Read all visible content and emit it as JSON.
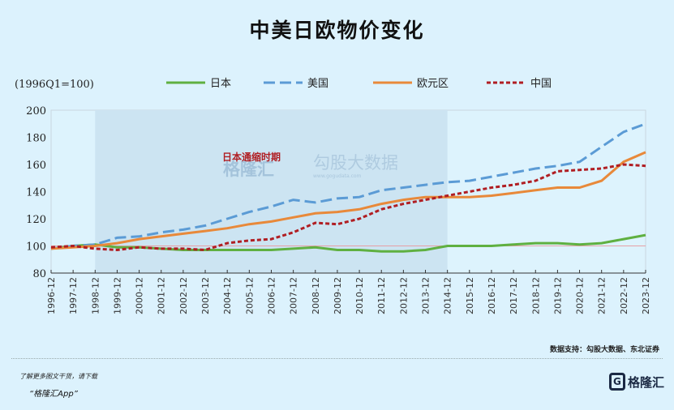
{
  "chart_data": {
    "type": "line",
    "title": "中美日欧物价变化",
    "ylabel": "(1996Q1=100)",
    "ylim": [
      80,
      200
    ],
    "yticks": [
      80,
      100,
      120,
      140,
      160,
      180,
      200
    ],
    "x": [
      "1996-12",
      "1997-12",
      "1998-12",
      "1999-12",
      "2000-12",
      "2001-12",
      "2002-12",
      "2003-12",
      "2004-12",
      "2005-12",
      "2006-12",
      "2007-12",
      "2008-12",
      "2009-12",
      "2010-12",
      "2011-12",
      "2012-12",
      "2013-12",
      "2014-12",
      "2015-12",
      "2016-12",
      "2017-12",
      "2018-12",
      "2019-12",
      "2020-12",
      "2021-12",
      "2022-12",
      "2023-12"
    ],
    "legend_position": "top",
    "reference_line": 100,
    "shaded_region": {
      "from": "1998-12",
      "to": "2014-12",
      "label": "日本通缩时期"
    },
    "series": [
      {
        "name": "日本",
        "color": "#5fb041",
        "style": "solid",
        "values": [
          98,
          100,
          101,
          99,
          99,
          98,
          97,
          97,
          97,
          97,
          97,
          98,
          99,
          97,
          97,
          96,
          96,
          97,
          100,
          100,
          100,
          101,
          102,
          102,
          101,
          102,
          105,
          108
        ]
      },
      {
        "name": "美国",
        "color": "#5b9bd5",
        "style": "dashed",
        "values": [
          98,
          100,
          101,
          106,
          107,
          110,
          112,
          115,
          120,
          125,
          129,
          134,
          132,
          135,
          136,
          141,
          143,
          145,
          147,
          148,
          151,
          154,
          157,
          159,
          162,
          173,
          184,
          190
        ]
      },
      {
        "name": "欧元区",
        "color": "#e8893a",
        "style": "solid",
        "values": [
          98,
          99,
          100,
          102,
          105,
          107,
          109,
          111,
          113,
          116,
          118,
          121,
          124,
          125,
          127,
          131,
          134,
          136,
          136,
          136,
          137,
          139,
          141,
          143,
          143,
          148,
          162,
          169
        ]
      },
      {
        "name": "中国",
        "color": "#b01e23",
        "style": "dotted",
        "values": [
          99,
          100,
          98,
          97,
          99,
          98,
          98,
          97,
          102,
          104,
          105,
          110,
          117,
          116,
          120,
          127,
          131,
          134,
          137,
          140,
          143,
          145,
          148,
          155,
          156,
          157,
          160,
          159
        ]
      }
    ]
  },
  "watermark": {
    "brand": "格隆汇",
    "brand_url": "www.gelonghui.com",
    "data_brand": "勾股大数据",
    "data_url": "www.gogudata.com"
  },
  "footer": {
    "source": "数据支持：勾股大数据、东北证券",
    "promo_line1": "了解更多图文干货，请下载",
    "promo_line2": "“格隆汇App”",
    "logo_text": "格隆汇"
  }
}
